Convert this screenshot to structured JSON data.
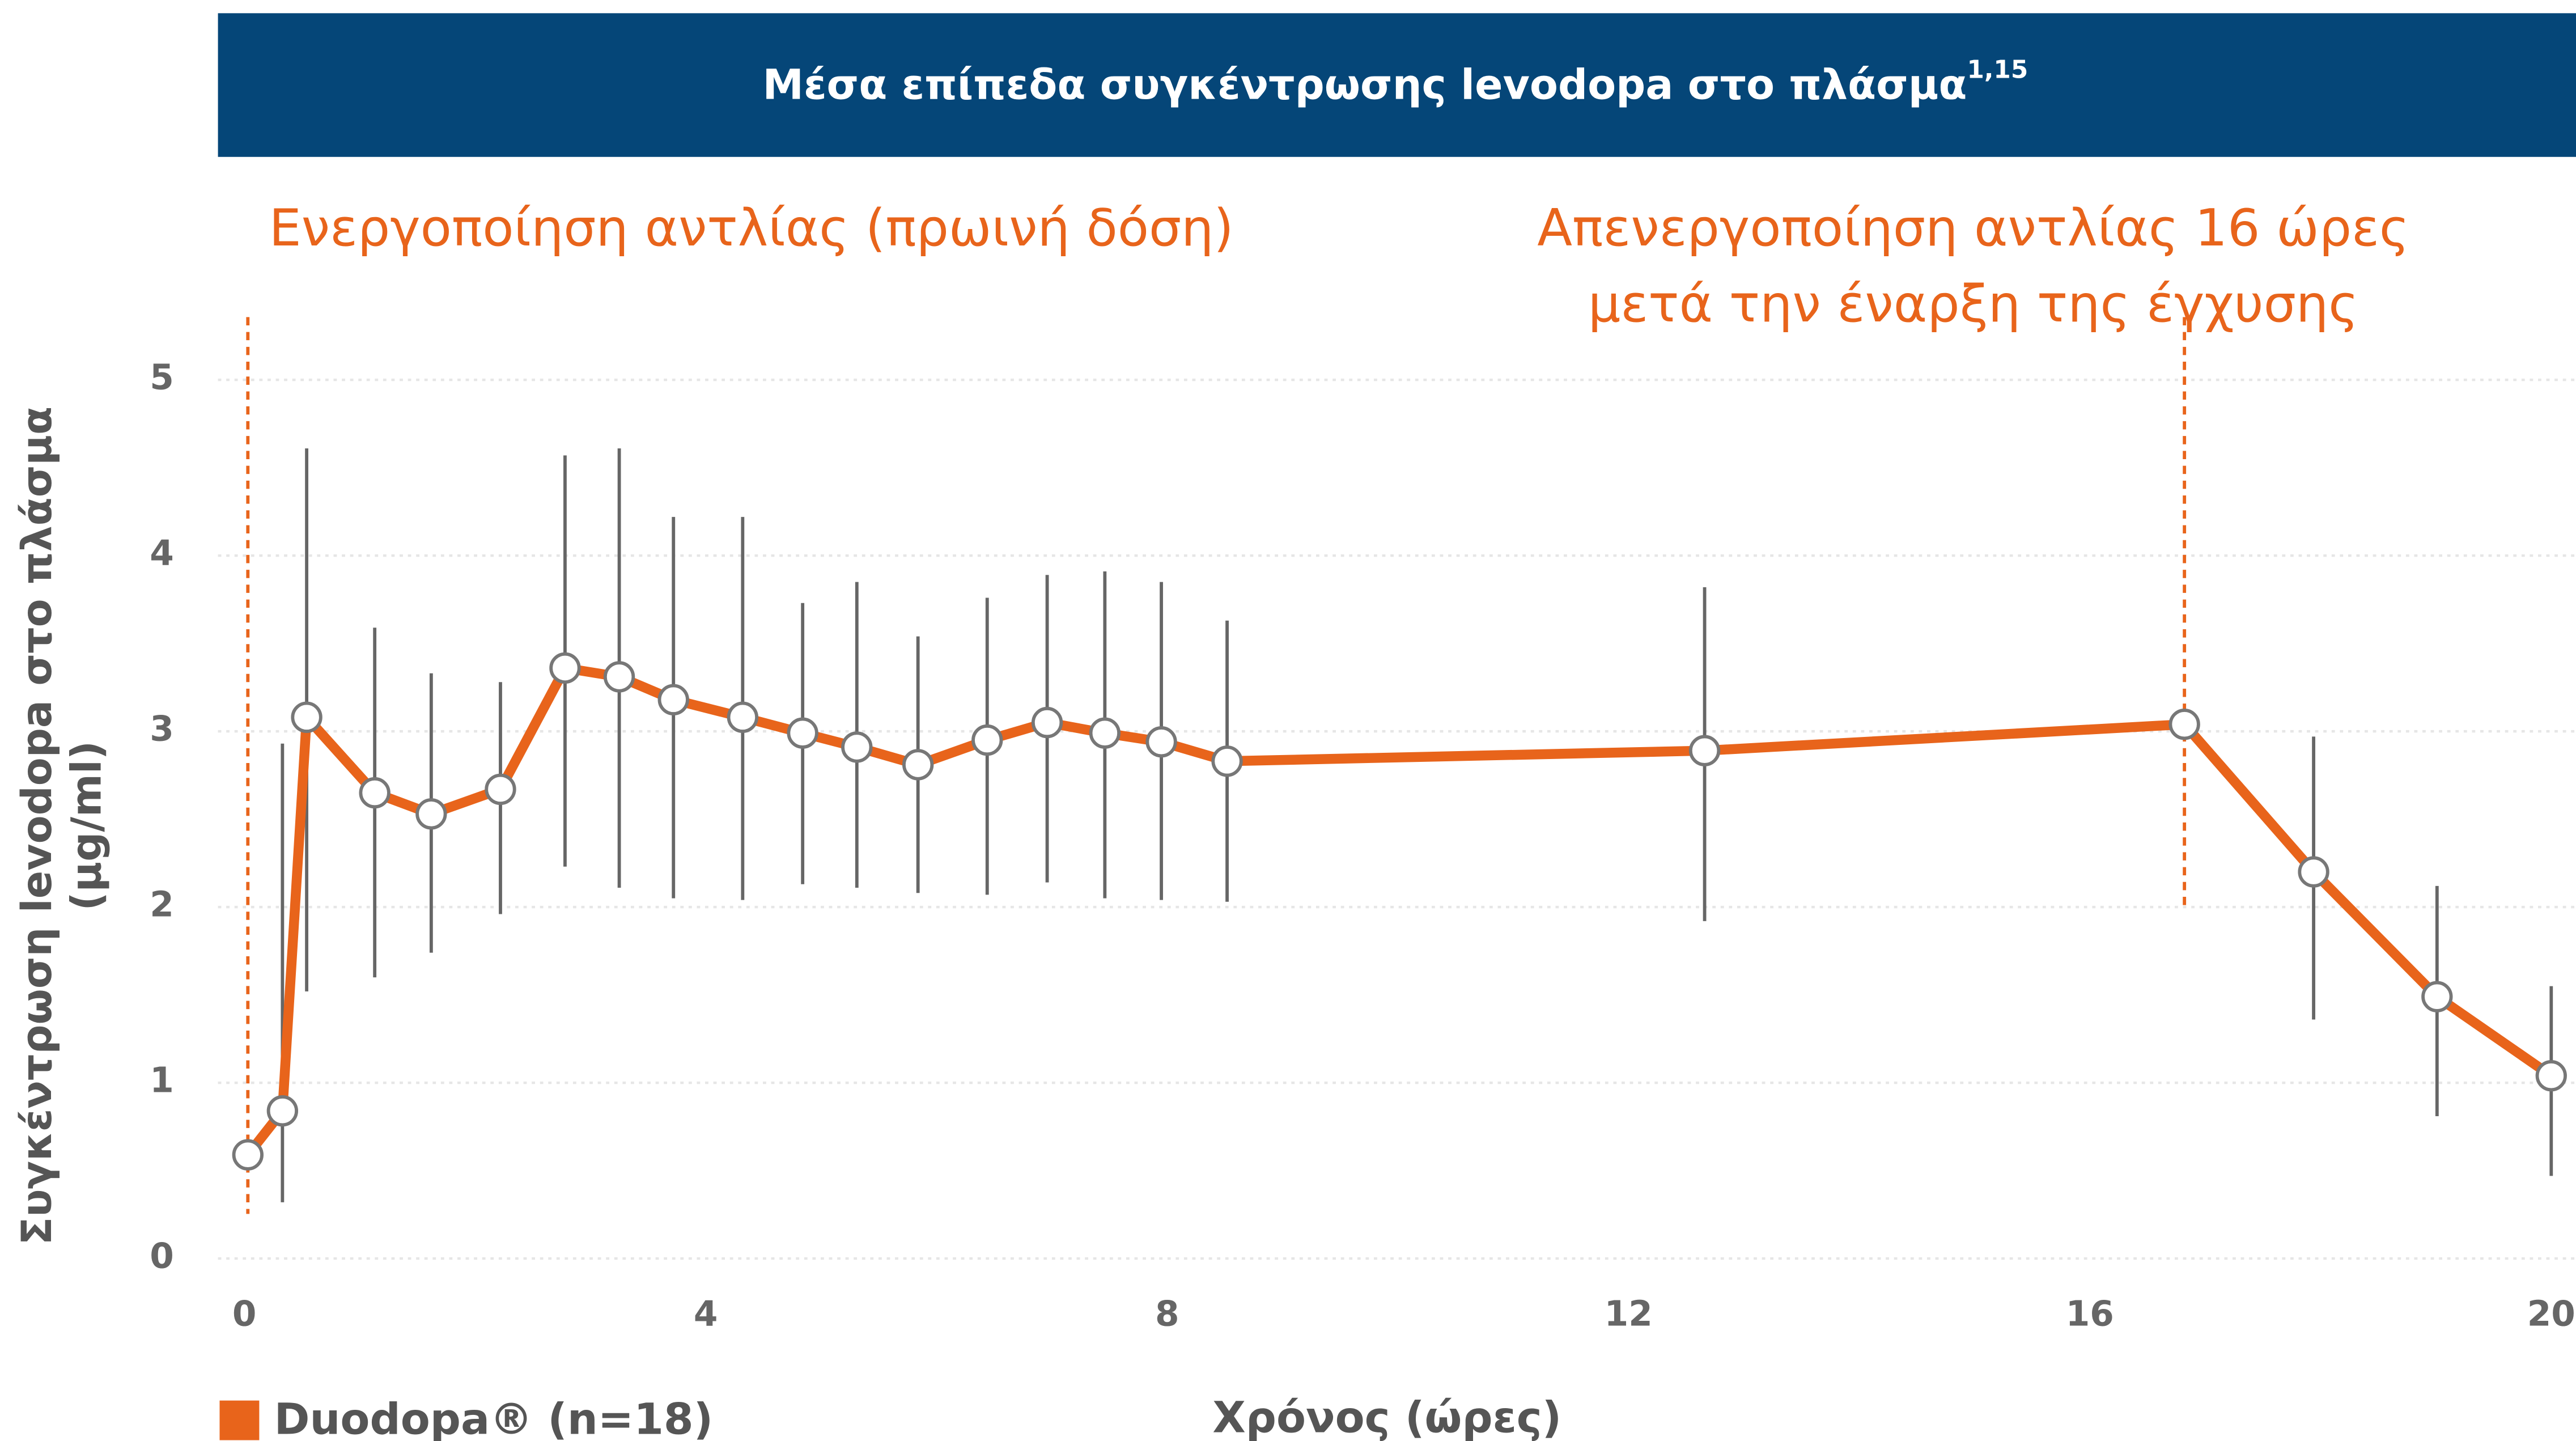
{
  "chart_data": {
    "type": "line",
    "title": "Μέσα επίπεδα συγκέντρωσης levodopa στο πλάσμα",
    "title_superscript": "1,15",
    "x_label": "Χρόνος (ώρες)",
    "y_label": [
      "Συγκέντρωση levodopa στο πλάσμα",
      "(μg/ml)"
    ],
    "annotations": [
      {
        "lines": [
          "Ενεργοποίηση αντλίας (πρωινή δόση)"
        ],
        "x": 0.03
      },
      {
        "lines": [
          "Απενεργοποίηση αντλίας 16 ώρες",
          "μετά την έναρξη της έγχυσης"
        ],
        "x": 16.82
      }
    ],
    "x": [
      0.03,
      0.33,
      0.54,
      1.13,
      1.62,
      2.22,
      2.78,
      3.25,
      3.72,
      4.32,
      4.84,
      5.31,
      5.84,
      6.44,
      6.96,
      7.46,
      7.95,
      8.52,
      12.66,
      16.82,
      17.94,
      19.01,
      20.0
    ],
    "series": [
      {
        "name": "Duodopa® (n=18)",
        "color": "#e8641b",
        "values": [
          0.59,
          0.84,
          3.08,
          2.65,
          2.53,
          2.67,
          3.36,
          3.31,
          3.18,
          3.08,
          2.99,
          2.91,
          2.81,
          2.95,
          3.05,
          2.99,
          2.94,
          2.83,
          2.89,
          3.04,
          2.2,
          1.49,
          1.04
        ],
        "upper": [
          null,
          2.93,
          4.61,
          3.59,
          3.33,
          3.28,
          4.57,
          4.61,
          4.22,
          4.22,
          3.73,
          3.85,
          3.54,
          3.76,
          3.89,
          3.91,
          3.85,
          3.63,
          3.82,
          null,
          2.97,
          2.12,
          1.55
        ],
        "lower": [
          null,
          0.32,
          1.52,
          1.6,
          1.74,
          1.96,
          2.23,
          2.11,
          2.05,
          2.04,
          2.13,
          2.11,
          2.08,
          2.07,
          2.14,
          2.05,
          2.04,
          2.03,
          1.92,
          null,
          1.36,
          0.81,
          0.47
        ]
      }
    ],
    "xlim": [
      0,
      20
    ],
    "xticks": [
      0,
      4,
      8,
      12,
      16,
      20
    ],
    "ylim": [
      0,
      5
    ],
    "yticks": [
      0,
      1,
      2,
      3,
      4,
      5
    ],
    "grid": true
  }
}
